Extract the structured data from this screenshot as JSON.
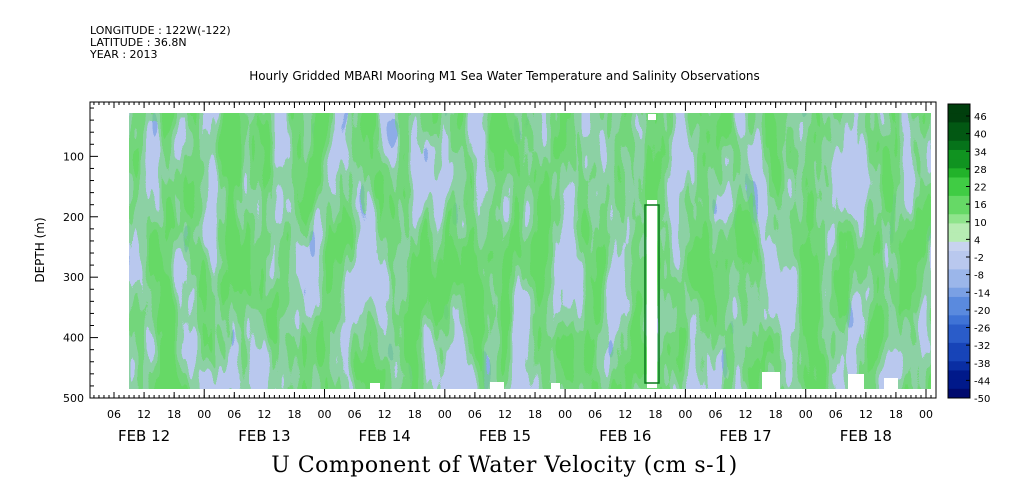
{
  "header": {
    "longitude": "LONGITUDE : 122W(-122)",
    "latitude": "LATITUDE : 36.8N",
    "year": "YEAR : 2013"
  },
  "chart_data": {
    "type": "heatmap",
    "title": "Hourly Gridded MBARI Mooring M1 Sea Water Temperature and Salinity Observations",
    "xlabel": "U Component of Water Velocity (cm s-1)",
    "ylabel": "DEPTH (m)",
    "y_ticks": [
      "100",
      "200",
      "300",
      "400",
      "500"
    ],
    "y_tick_values": [
      100,
      200,
      300,
      400,
      500
    ],
    "ylim": [
      10,
      500
    ],
    "y_reversed": true,
    "x_hour_ticks": [
      "06",
      "12",
      "18",
      "00",
      "06",
      "12",
      "18",
      "00",
      "06",
      "12",
      "18",
      "00",
      "06",
      "12",
      "18",
      "00",
      "06",
      "12",
      "18",
      "00",
      "06",
      "12",
      "18",
      "00",
      "06",
      "12",
      "18",
      "00"
    ],
    "x_day_labels": [
      "FEB 12",
      "FEB 13",
      "FEB 14",
      "FEB 15",
      "FEB 16",
      "FEB 17",
      "FEB 18"
    ],
    "colorbar": {
      "labels": [
        "46",
        "40",
        "34",
        "28",
        "22",
        "16",
        "10",
        "4",
        "-2",
        "-8",
        "-14",
        "-20",
        "-26",
        "-32",
        "-38",
        "-44",
        "-50"
      ],
      "min": -50,
      "max": 46,
      "step": 3,
      "colors_low_to_high": [
        "#000a6e",
        "#00198a",
        "#0a2ea3",
        "#1744b8",
        "#2a5cc9",
        "#3f73d6",
        "#5a8ade",
        "#7aa0e4",
        "#9bb6ea",
        "#b9c8ee",
        "#c8d3ef",
        "#b7ecb3",
        "#8fe48c",
        "#66d966",
        "#40cc44",
        "#22b32a",
        "#109320",
        "#06731a",
        "#025813",
        "#003f0d"
      ]
    }
  }
}
